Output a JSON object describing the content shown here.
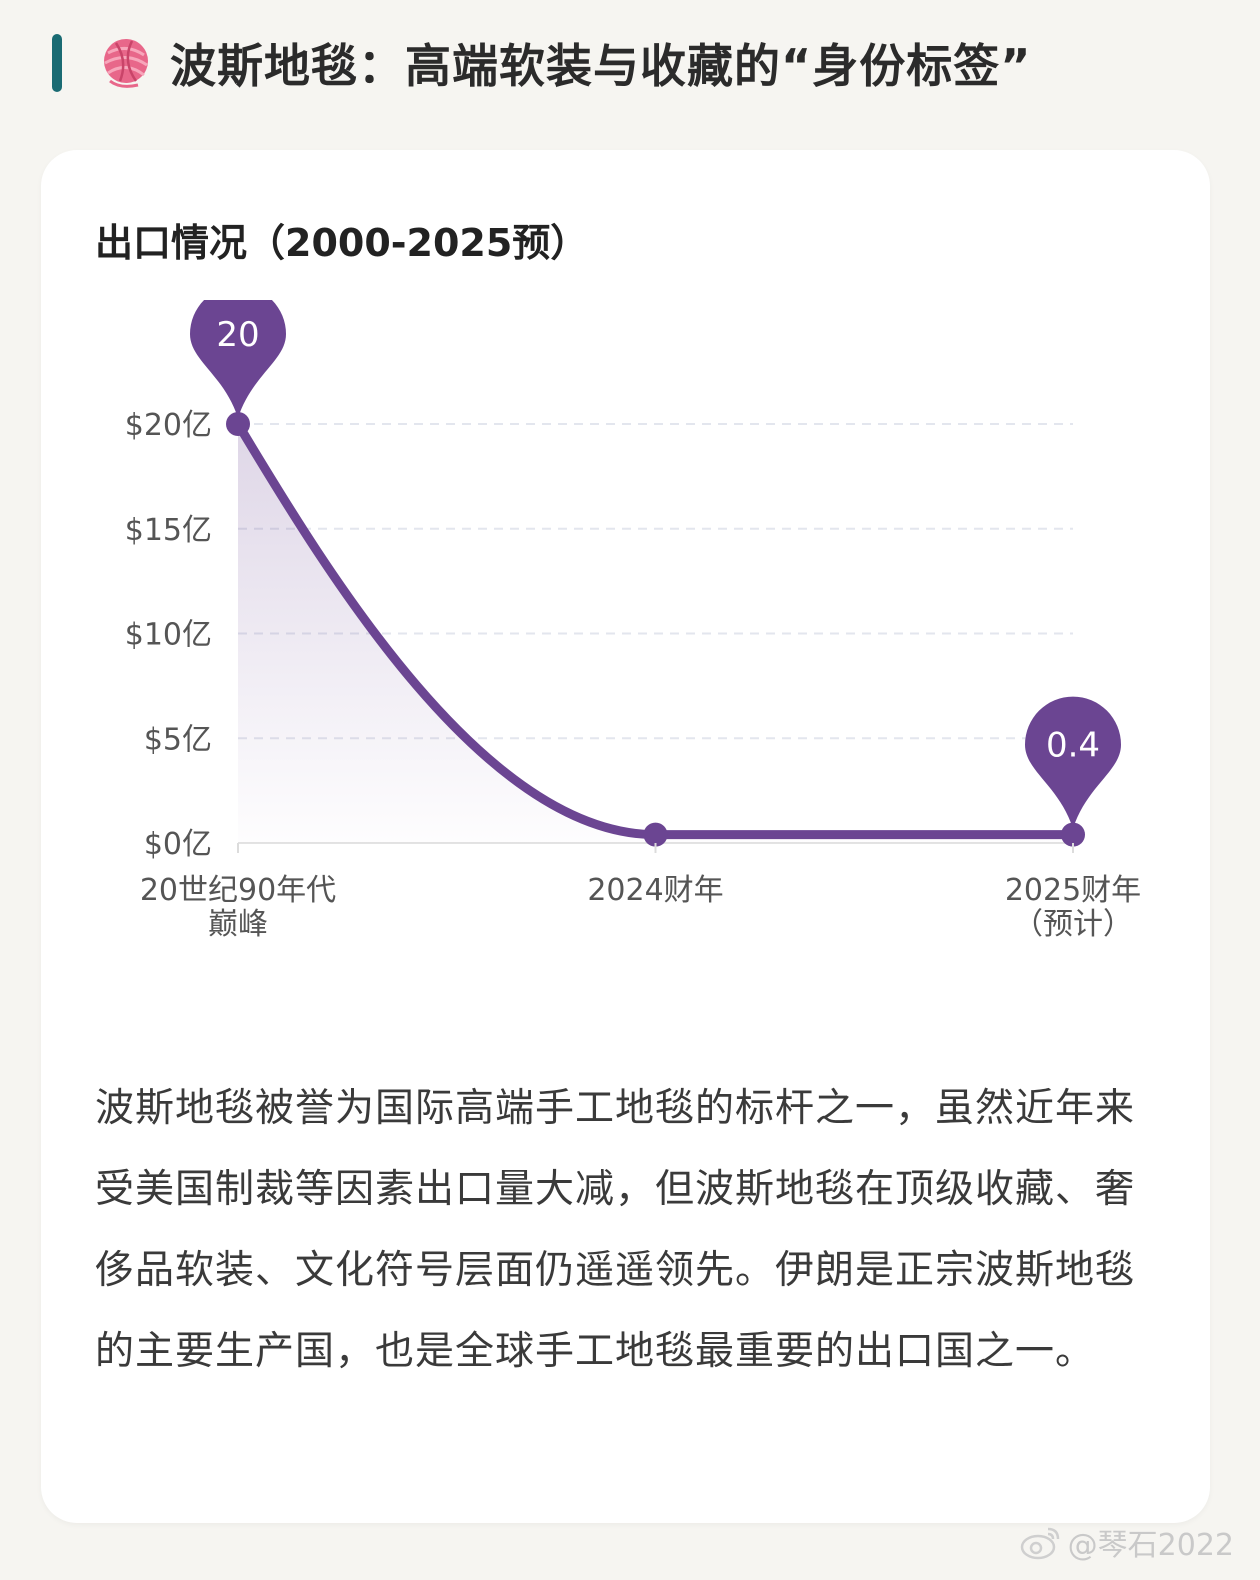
{
  "header": {
    "title": "波斯地毯：高端软装与收藏的“身份标签”",
    "icon": "yarn-ball-icon"
  },
  "chart_data": {
    "type": "line",
    "title": "出口情况（2000-2025预）",
    "categories": [
      [
        "20世纪90年代",
        "巅峰"
      ],
      [
        "2024财年"
      ],
      [
        "2025财年",
        "（预计）"
      ]
    ],
    "values": [
      20,
      0.4,
      0.4
    ],
    "value_unit": "亿美元",
    "ylim": [
      0,
      20
    ],
    "yticks": [
      0,
      5,
      10,
      15,
      20
    ],
    "ytick_labels": [
      "$0亿",
      "$5亿",
      "$10亿",
      "$15亿",
      "$20亿"
    ],
    "annotations": [
      {
        "index": 0,
        "label": "20"
      },
      {
        "index": 2,
        "label": "0.4"
      }
    ],
    "grid": true,
    "line_color": "#6b4592",
    "fill_color": "#6b4592"
  },
  "description": "波斯地毯被誉为国际高端手工地毯的标杆之一，虽然近年来受美国制裁等因素出口量大减，但波斯地毯在顶级收藏、奢侈品软装、文化符号层面仍遥遥领先。伊朗是正宗波斯地毯的主要生产国，也是全球手工地毯最重要的出口国之一。",
  "watermark": {
    "text": "@琴石2022",
    "icon": "weibo-icon"
  }
}
